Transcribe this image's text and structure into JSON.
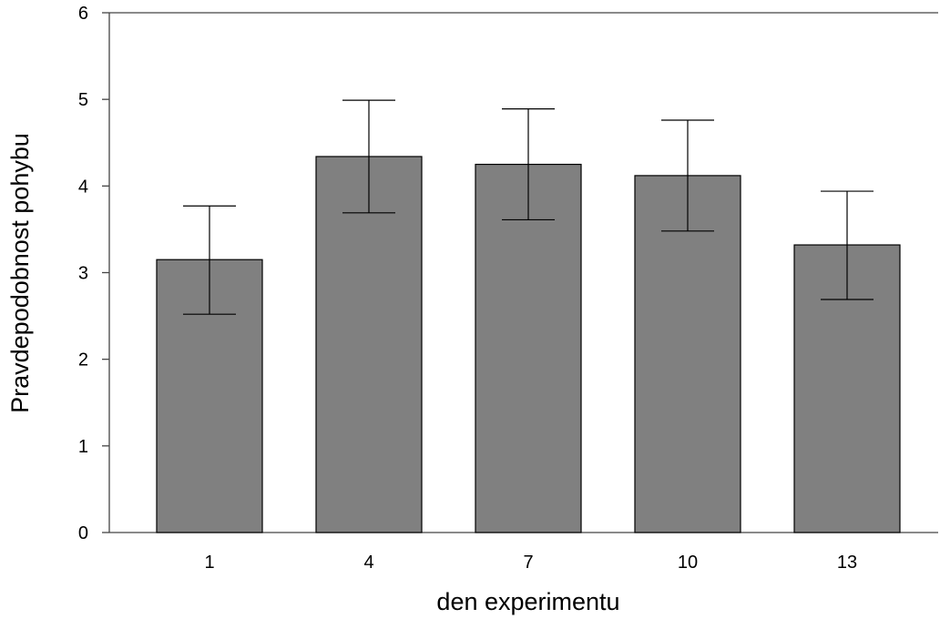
{
  "chart_data": {
    "type": "bar",
    "title": "",
    "xlabel": "den experimentu",
    "ylabel": "Pravdepodobnost  pohybu",
    "categories": [
      "1",
      "4",
      "7",
      "10",
      "13"
    ],
    "values": [
      3.15,
      4.34,
      4.25,
      4.12,
      3.32
    ],
    "error_bars": {
      "lower": [
        2.52,
        3.69,
        3.61,
        3.48,
        2.69
      ],
      "upper": [
        3.77,
        4.99,
        4.89,
        4.76,
        3.94
      ]
    },
    "ylim": [
      0,
      6
    ],
    "yticks": [
      "0",
      "1",
      "2",
      "3",
      "4",
      "5",
      "6"
    ],
    "grid": false,
    "legend": "none",
    "bar_color": "#808080",
    "bar_edge_color": "#000000"
  }
}
